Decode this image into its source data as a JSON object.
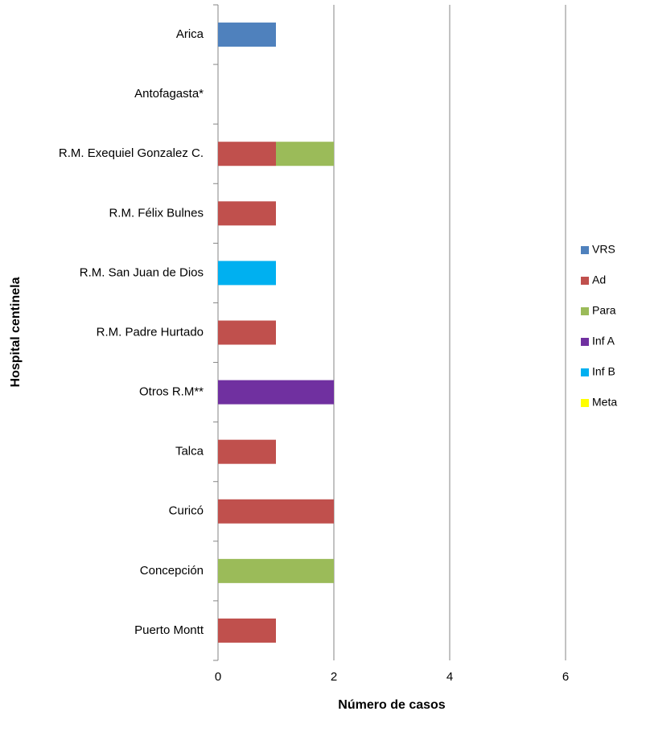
{
  "chart_data": {
    "type": "stacked-barh",
    "x_label": "Número de casos",
    "y_label": "Hospital  centinela",
    "categories": [
      "Arica",
      "Antofagasta*",
      "R.M. Exequiel Gonzalez C.",
      "R.M. Félix Bulnes",
      "R.M. San Juan de Dios",
      "R.M. Padre Hurtado",
      "Otros R.M**",
      "Talca",
      "Curicó",
      "Concepción",
      "Puerto Montt"
    ],
    "series": [
      {
        "name": "VRS",
        "color": "#4f81bd",
        "values": [
          1,
          0,
          0,
          0,
          0,
          0,
          0,
          0,
          0,
          0,
          0
        ]
      },
      {
        "name": "Ad",
        "color": "#c0504d",
        "values": [
          0,
          0,
          1,
          1,
          0,
          1,
          0,
          1,
          2,
          0,
          1
        ]
      },
      {
        "name": "Para",
        "color": "#9bbb59",
        "values": [
          0,
          0,
          1,
          0,
          0,
          0,
          0,
          0,
          0,
          2,
          0
        ]
      },
      {
        "name": "Inf A",
        "color": "#7030a0",
        "values": [
          0,
          0,
          0,
          0,
          0,
          0,
          2,
          0,
          0,
          0,
          0
        ]
      },
      {
        "name": "Inf B",
        "color": "#00b0f0",
        "values": [
          0,
          0,
          0,
          0,
          1,
          0,
          0,
          0,
          0,
          0,
          0
        ]
      },
      {
        "name": "Meta",
        "color": "#ffff00",
        "values": [
          0,
          0,
          0,
          0,
          0,
          0,
          0,
          0,
          0,
          0,
          0
        ]
      }
    ],
    "xlim": [
      0,
      6
    ],
    "xticks": [
      0,
      2,
      4,
      6
    ],
    "grid": true,
    "legend": "right"
  }
}
